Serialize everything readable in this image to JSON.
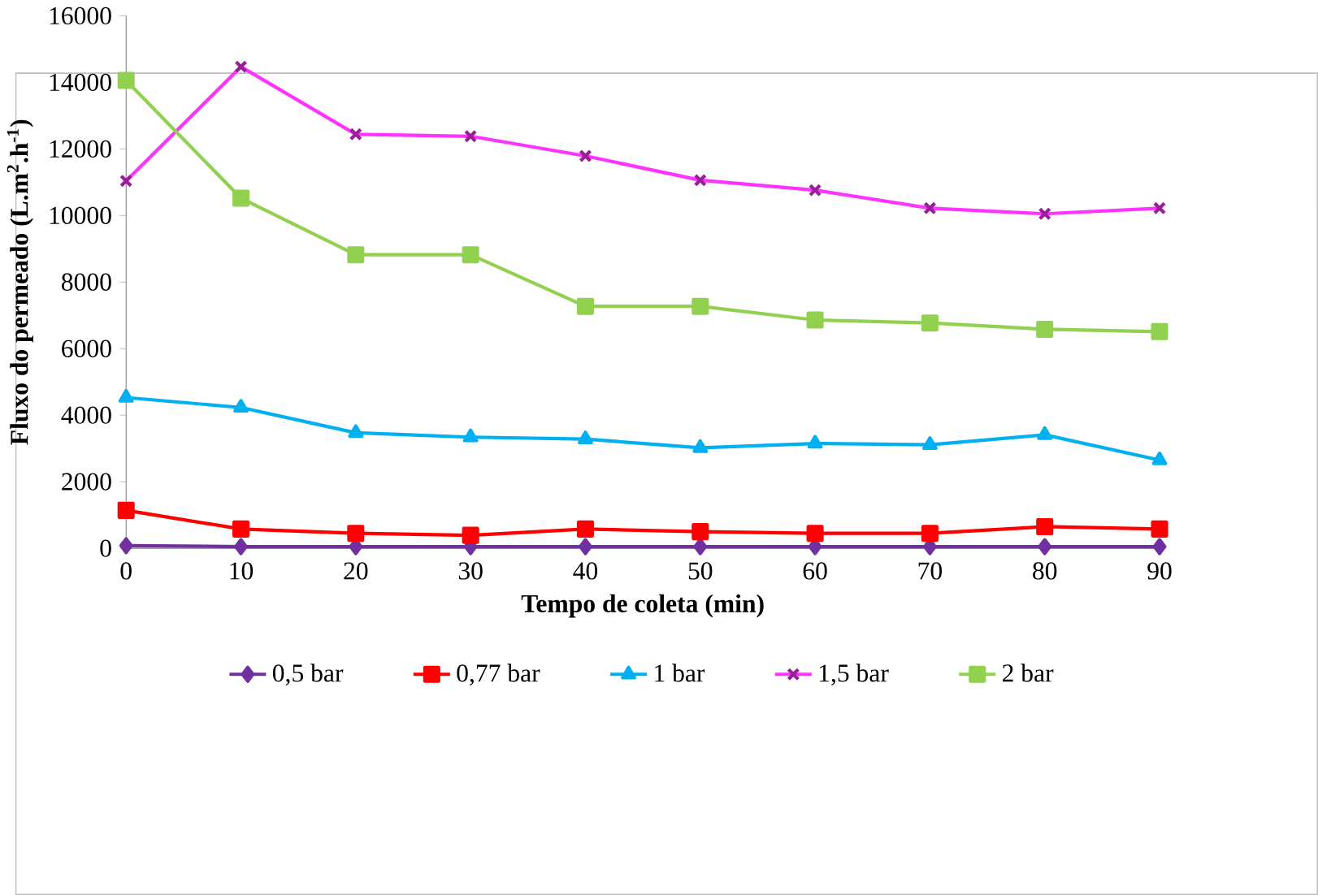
{
  "chart_data": {
    "type": "line",
    "xlabel": "Tempo de coleta  (min)",
    "ylabel": "Fluxo do permeado (L.m$^{2}$.h$^{-1}$)",
    "x": [
      0,
      10,
      20,
      30,
      40,
      50,
      60,
      70,
      80,
      90
    ],
    "xlim": [
      0,
      90
    ],
    "xticks": [
      0,
      10,
      20,
      30,
      40,
      50,
      60,
      70,
      80,
      90
    ],
    "ylim": [
      0,
      16000
    ],
    "yticks": [
      0,
      2000,
      4000,
      6000,
      8000,
      10000,
      12000,
      14000,
      16000
    ],
    "grid": false,
    "legend": "bottom",
    "line_style": "solid",
    "series": [
      {
        "name": "0,5 bar",
        "color": "#7030a0",
        "marker": "diamond",
        "values": [
          80,
          50,
          50,
          50,
          50,
          50,
          50,
          50,
          50,
          50
        ]
      },
      {
        "name": "0,77 bar",
        "color": "#ff0000",
        "marker": "square",
        "values": [
          1140,
          580,
          450,
          390,
          580,
          500,
          450,
          450,
          650,
          580
        ]
      },
      {
        "name": "1 bar",
        "color": "#00b0f0",
        "marker": "triangle",
        "values": [
          4530,
          4230,
          3470,
          3340,
          3280,
          3020,
          3150,
          3110,
          3410,
          2650
        ]
      },
      {
        "name": "1,5 bar",
        "color": "#ff33ff",
        "marker": "cross",
        "values": [
          11040,
          14470,
          12440,
          12380,
          11790,
          11060,
          10760,
          10220,
          10050,
          10220
        ]
      },
      {
        "name": "2 bar",
        "color": "#92d050",
        "marker": "square",
        "values": [
          14060,
          10520,
          8820,
          8820,
          7270,
          7270,
          6860,
          6770,
          6580,
          6510
        ]
      }
    ]
  }
}
